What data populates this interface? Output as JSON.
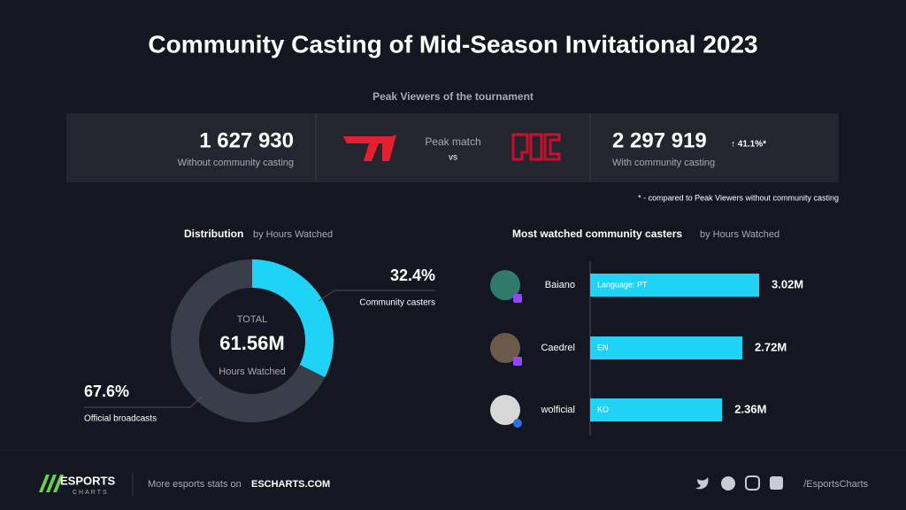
{
  "title": "Community Casting of Mid-Season Invitational 2023",
  "peak": {
    "heading": "Peak Viewers of the tournament",
    "without": {
      "value": "1 627 930",
      "label": "Without community casting"
    },
    "match": {
      "label": "Peak match",
      "vs": "vs"
    },
    "with": {
      "value": "2 297 919",
      "change": "↑ 41.1%*",
      "label": "With community casting"
    },
    "footnote": "* - compared to Peak Viewers without community casting"
  },
  "chart_data": [
    {
      "type": "pie",
      "title": "Distribution",
      "subtitle": "by Hours Watched",
      "center": {
        "top": "TOTAL",
        "value": "61.56M",
        "bottom": "Hours Watched"
      },
      "categories": [
        "Community casters",
        "Official broadcasts"
      ],
      "values": [
        32.4,
        67.6
      ],
      "value_labels": [
        "32.4%",
        "67.6%"
      ],
      "colors": [
        "#1fd3f7",
        "#3a3e4b"
      ]
    },
    {
      "type": "bar",
      "title": "Most watched community casters",
      "subtitle": "by Hours Watched",
      "categories": [
        "Baiano",
        "Caedrel",
        "wolficial"
      ],
      "bar_labels": [
        "Language: PT",
        "EN",
        "KO"
      ],
      "values": [
        3.02,
        2.72,
        2.36
      ],
      "value_labels": [
        "3.02M",
        "2.72M",
        "2.36M"
      ],
      "color": "#1fd3f7",
      "xlim": [
        0,
        4
      ]
    }
  ],
  "footer": {
    "brand": "ESPORTS",
    "brand_sub": "CHARTS",
    "more": "More esports stats on",
    "site": "ESCHARTS.COM",
    "handle": "/EsportsCharts"
  }
}
